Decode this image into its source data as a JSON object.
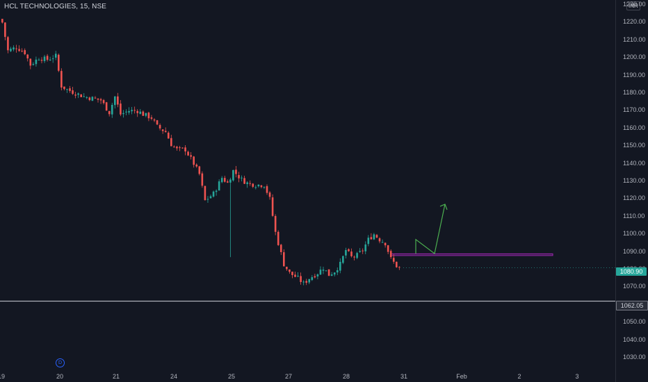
{
  "header": {
    "symbol": "HCL TECHNOLOGIES, 15, NSE",
    "currency": "INR"
  },
  "events": {
    "dividend_marker": "D"
  },
  "price_scale": {
    "labels": [
      "1230.00",
      "1220.00",
      "1210.00",
      "1200.00",
      "1190.00",
      "1180.00",
      "1170.00",
      "1160.00",
      "1150.00",
      "1140.00",
      "1130.00",
      "1120.00",
      "1110.00",
      "1100.00",
      "1090.00",
      "1080.00",
      "1070.00",
      "1060.00",
      "1050.00",
      "1040.00",
      "1030.00"
    ],
    "last_price": "1080.90",
    "hline_price": "1062.05"
  },
  "time_scale": {
    "labels": [
      "19",
      "20",
      "21",
      "24",
      "25",
      "27",
      "28",
      "31",
      "Feb",
      "2",
      "3"
    ]
  },
  "colors": {
    "up": "#26a69a",
    "down": "#ef5350",
    "background": "#131722",
    "hline": "#d1d4dc",
    "zone": "#9c27b0",
    "projection": "#4caf50"
  },
  "chart_data": {
    "type": "candlestick",
    "title": "HCL TECHNOLOGIES, 15, NSE",
    "interval": "15",
    "exchange": "NSE",
    "currency": "INR",
    "ylim": [
      1025,
      1233
    ],
    "x_labels": [
      "19",
      "20",
      "21",
      "24",
      "25",
      "27",
      "28",
      "31",
      "Feb",
      "2",
      "3"
    ],
    "y_ticks": [
      1220,
      1210,
      1200,
      1190,
      1180,
      1170,
      1160,
      1150,
      1140,
      1130,
      1120,
      1110,
      1100,
      1090,
      1080,
      1070,
      1060,
      1050,
      1040,
      1030
    ],
    "last_price": 1080.9,
    "horizontal_line": 1062.05,
    "support_zone": [
      1087.9,
      1088.9
    ],
    "projection_path": [
      [
        31.2,
        1097
      ],
      [
        31.5,
        1089
      ],
      [
        31.7,
        1117
      ]
    ],
    "close_anchors": [
      [
        0,
        1220
      ],
      [
        2,
        1204
      ],
      [
        5,
        1206
      ],
      [
        8,
        1203
      ],
      [
        10,
        1196
      ],
      [
        13,
        1200
      ],
      [
        16,
        1199
      ],
      [
        19,
        1201
      ],
      [
        21,
        1184
      ],
      [
        23,
        1182
      ],
      [
        26,
        1180
      ],
      [
        29,
        1178
      ],
      [
        32,
        1177
      ],
      [
        35,
        1176
      ],
      [
        38,
        1169
      ],
      [
        40,
        1178
      ],
      [
        42,
        1168
      ],
      [
        45,
        1170
      ],
      [
        48,
        1170
      ],
      [
        50,
        1168
      ],
      [
        53,
        1166
      ],
      [
        55,
        1161
      ],
      [
        58,
        1158
      ],
      [
        60,
        1151
      ],
      [
        62,
        1148
      ],
      [
        65,
        1148
      ],
      [
        68,
        1140
      ],
      [
        70,
        1134
      ],
      [
        72,
        1119
      ],
      [
        75,
        1123
      ],
      [
        78,
        1132
      ],
      [
        80,
        1129
      ],
      [
        82,
        1136
      ],
      [
        85,
        1131
      ],
      [
        87,
        1129
      ],
      [
        90,
        1128
      ],
      [
        93,
        1128
      ],
      [
        95,
        1120
      ],
      [
        97,
        1101
      ],
      [
        100,
        1083
      ],
      [
        102,
        1078
      ],
      [
        105,
        1075
      ],
      [
        107,
        1072
      ],
      [
        109,
        1075
      ],
      [
        112,
        1078
      ],
      [
        114,
        1081
      ],
      [
        116,
        1077
      ],
      [
        118,
        1079
      ],
      [
        120,
        1083
      ],
      [
        122,
        1091
      ],
      [
        124,
        1087
      ],
      [
        126,
        1088
      ],
      [
        128,
        1091
      ],
      [
        130,
        1097
      ],
      [
        132,
        1100
      ],
      [
        134,
        1097
      ],
      [
        136,
        1095
      ],
      [
        138,
        1086
      ],
      [
        140,
        1082
      ],
      [
        141,
        1081
      ]
    ],
    "candle_count": 142,
    "x_range_sessions": [
      19,
      3
    ]
  }
}
